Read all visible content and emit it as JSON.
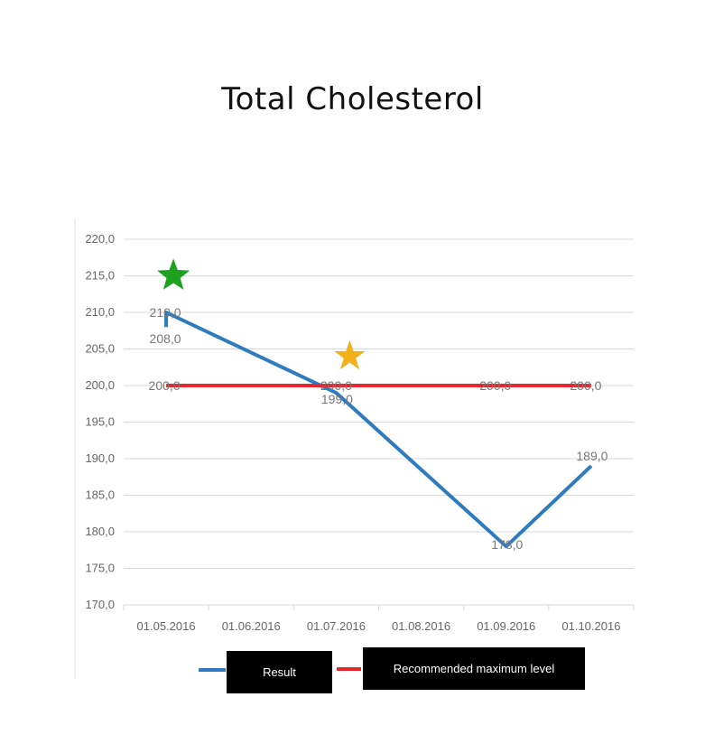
{
  "chart_data": {
    "type": "line",
    "title": "Total Cholesterol",
    "categories": [
      "01.05.2016",
      "01.06.2016",
      "01.07.2016",
      "01.08.2016",
      "01.09.2016",
      "01.10.2016"
    ],
    "ylim": [
      170,
      220
    ],
    "yticks": [
      "170,0",
      "175,0",
      "180,0",
      "185,0",
      "190,0",
      "195,0",
      "200,0",
      "205,0",
      "210,0",
      "215,0",
      "220,0"
    ],
    "grid": true,
    "legend_position": "bottom",
    "series": [
      {
        "name": "Result",
        "color": "#2e7bbf",
        "points": [
          {
            "x": "01.05.2016",
            "y": 208
          },
          {
            "x": "01.05.2016",
            "y": 210
          },
          {
            "x": "01.07.2016",
            "y": 199
          },
          {
            "x": "01.09.2016",
            "y": 178
          },
          {
            "x": "01.10.2016",
            "y": 189
          }
        ],
        "labels": [
          "208,0",
          "210,0",
          "199,0",
          "178,0",
          "189,0"
        ]
      },
      {
        "name": "Recommended maximum level",
        "color": "#e8262d",
        "points": [
          {
            "x": "01.05.2016",
            "y": 200
          },
          {
            "x": "01.07.2016",
            "y": 200
          },
          {
            "x": "01.09.2016",
            "y": 200
          },
          {
            "x": "01.10.2016",
            "y": 200
          }
        ],
        "labels": [
          "200,0",
          "200,0",
          "200,0",
          "200,0"
        ]
      }
    ],
    "annotations": [
      {
        "shape": "star",
        "color": "#1ea11e",
        "near": "01.05.2016",
        "y": 215
      },
      {
        "shape": "star",
        "color": "#f2b01a",
        "near": "01.07.2016",
        "y": 204
      }
    ]
  },
  "legend": {
    "result_label": "Result",
    "max_label": "Recommended maximum level"
  }
}
